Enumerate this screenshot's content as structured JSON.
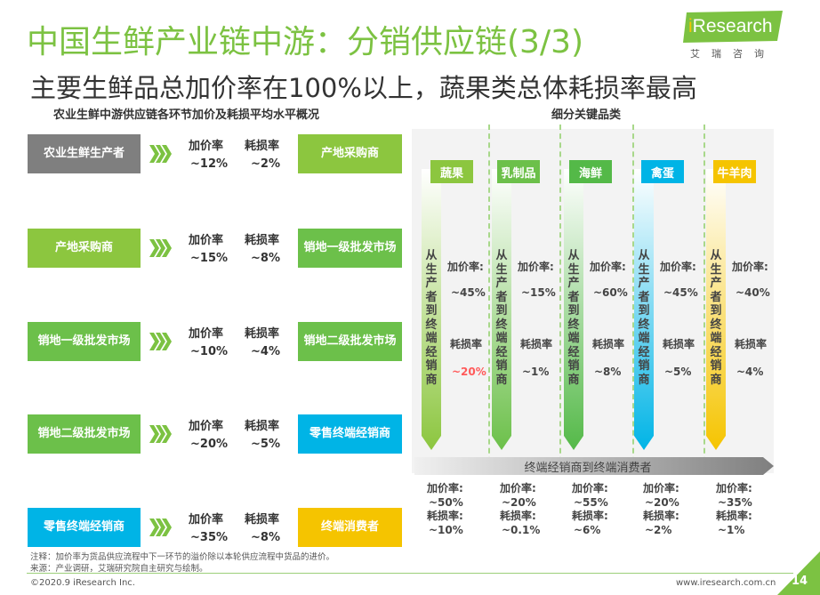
{
  "title": "中国生鲜产业链中游：分销供应链(3/3)",
  "subtitle": "主要生鲜品总加价率在100%以上，蔬果类总体耗损率最高",
  "logo": {
    "text": "Research",
    "prefix": "i",
    "sub": "艾瑞咨询",
    "color": "#7cc242"
  },
  "left_section_title": "农业生鲜中游供应链各环节加价及耗损平均水平概况",
  "right_section_title": "细分关键品类",
  "markup_label": "加价率",
  "loss_label": "耗损率",
  "chain": [
    {
      "from": "农业生鲜生产者",
      "from_color": "#7f7f7f",
      "markup": "~12%",
      "loss": "~2%",
      "to": "产地采购商",
      "to_color": "#8cc63f"
    },
    {
      "from": "产地采购商",
      "from_color": "#8cc63f",
      "markup": "~15%",
      "loss": "~8%",
      "to": "销地一级批发市场",
      "to_color": "#6cc04a"
    },
    {
      "from": "销地一级批发市场",
      "from_color": "#6cc04a",
      "markup": "~10%",
      "loss": "~4%",
      "to": "销地二级批发市场",
      "to_color": "#6cc04a"
    },
    {
      "from": "销地二级批发市场",
      "from_color": "#6cc04a",
      "markup": "~20%",
      "loss": "~5%",
      "to": "零售终端经销商",
      "to_color": "#00b4e6"
    },
    {
      "from": "零售终端经销商",
      "from_color": "#00b4e6",
      "markup": "~35%",
      "loss": "~8%",
      "to": "终端消费者",
      "to_color": "#f5c400"
    }
  ],
  "categories": [
    {
      "name": "蔬果",
      "color": "#8cc63f",
      "vertical_text": "从生产者到终端经销商",
      "markup_label": "加价率:",
      "markup": "~45%",
      "loss_label": "耗损率",
      "loss": "~20%",
      "loss_color": "#ff5a5a",
      "retail_markup": "~50%",
      "retail_loss": "~10%"
    },
    {
      "name": "乳制品",
      "color": "#6cc04a",
      "vertical_text": "从生产者到终端经销商",
      "markup_label": "加价率:",
      "markup": "~15%",
      "loss_label": "耗损率",
      "loss": "~1%",
      "loss_color": "#444444",
      "retail_markup": "~20%",
      "retail_loss": "~0.1%"
    },
    {
      "name": "海鲜",
      "color": "#54b948",
      "vertical_text": "从生产者到终端经销商",
      "markup_label": "加价率:",
      "markup": "~60%",
      "loss_label": "耗损率",
      "loss": "~8%",
      "loss_color": "#444444",
      "retail_markup": "~55%",
      "retail_loss": "~6%"
    },
    {
      "name": "禽蛋",
      "color": "#00b4e6",
      "vertical_text": "从生产者到终端经销商",
      "markup_label": "加价率:",
      "markup": "~45%",
      "loss_label": "耗损率",
      "loss": "~5%",
      "loss_color": "#444444",
      "retail_markup": "~20%",
      "retail_loss": "~2%"
    },
    {
      "name": "牛羊肉",
      "color": "#f5c400",
      "vertical_text": "从生产者到终端经销商",
      "markup_label": "加价率:",
      "markup": "~40%",
      "loss_label": "耗损率",
      "loss": "~4%",
      "loss_color": "#444444",
      "retail_markup": "~35%",
      "retail_loss": "~1%"
    }
  ],
  "retail_bar_label": "终端经销商到终端消费者",
  "consumer_markup_label": "加价率:",
  "consumer_loss_label": "耗损率:",
  "note": "注释：加价率为货品供应流程中下一环节的溢价除以本轮供应流程中货品的进价。",
  "source": "来源：产业调研，艾瑞研究院自主研究与绘制。",
  "copyright": "©2020.9 iResearch Inc.",
  "website": "www.iresearch.com.cn",
  "page_number": "14"
}
